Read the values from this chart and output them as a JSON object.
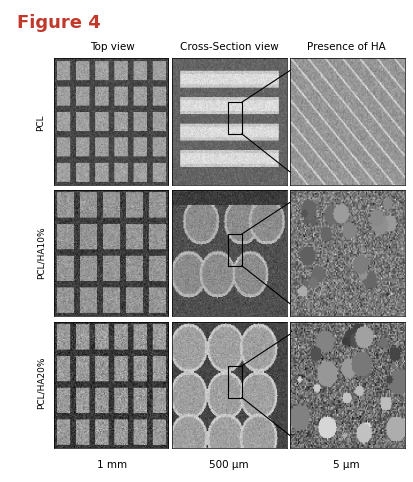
{
  "title": "Figure 4",
  "col_headers": [
    "Top view",
    "Cross-Section view",
    "Presence of HA"
  ],
  "row_labels": [
    "PCL",
    "PCL/HA10%",
    "PCL/HA20%"
  ],
  "scale_bars": [
    "1 mm",
    "500 μm",
    "5 μm"
  ],
  "title_color": "#c0392b",
  "title_fontsize": 13,
  "header_fontsize": 7.5,
  "row_label_fontsize": 6.5,
  "scale_bar_fontsize": 7.5,
  "background_color": "#ffffff",
  "fig_width": 4.13,
  "fig_height": 4.82,
  "dpi": 100
}
